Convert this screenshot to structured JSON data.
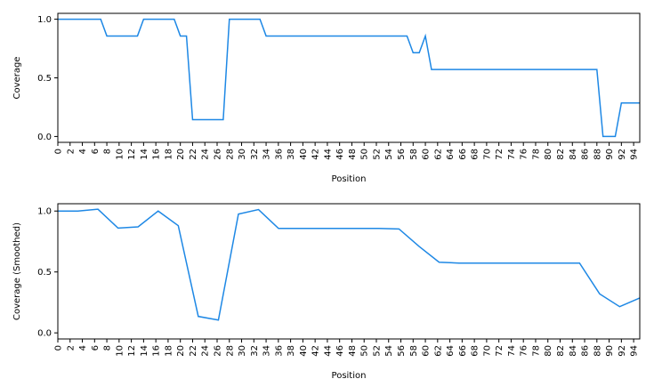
{
  "chart_data": [
    {
      "type": "line",
      "xlabel": "Position",
      "ylabel": "Coverage",
      "color": "#1e88e5",
      "x": [
        0,
        1,
        2,
        3,
        4,
        5,
        6,
        7,
        8,
        9,
        10,
        11,
        12,
        13,
        14,
        15,
        16,
        17,
        18,
        19,
        20,
        21,
        22,
        23,
        24,
        25,
        26,
        27,
        28,
        29,
        30,
        31,
        32,
        33,
        34,
        35,
        36,
        37,
        38,
        39,
        40,
        41,
        42,
        43,
        44,
        45,
        46,
        47,
        48,
        49,
        50,
        51,
        52,
        53,
        54,
        55,
        56,
        57,
        58,
        59,
        60,
        61,
        62,
        63,
        64,
        65,
        66,
        67,
        68,
        69,
        70,
        71,
        72,
        73,
        74,
        75,
        76,
        77,
        78,
        79,
        80,
        81,
        82,
        83,
        84,
        85,
        86,
        87,
        88,
        89,
        90,
        91,
        92,
        93,
        94,
        95
      ],
      "values": [
        1,
        1,
        1,
        1,
        1,
        1,
        1,
        1,
        0.857,
        0.857,
        0.857,
        0.857,
        0.857,
        0.857,
        1,
        1,
        1,
        1,
        1,
        1,
        0.857,
        0.857,
        0.143,
        0.143,
        0.143,
        0.143,
        0.143,
        0.143,
        1,
        1,
        1,
        1,
        1,
        1,
        0.857,
        0.857,
        0.857,
        0.857,
        0.857,
        0.857,
        0.857,
        0.857,
        0.857,
        0.857,
        0.857,
        0.857,
        0.857,
        0.857,
        0.857,
        0.857,
        0.857,
        0.857,
        0.857,
        0.857,
        0.857,
        0.857,
        0.857,
        0.857,
        0.714,
        0.714,
        0.857,
        0.571,
        0.571,
        0.571,
        0.571,
        0.571,
        0.571,
        0.571,
        0.571,
        0.571,
        0.571,
        0.571,
        0.571,
        0.571,
        0.571,
        0.571,
        0.571,
        0.571,
        0.571,
        0.571,
        0.571,
        0.571,
        0.571,
        0.571,
        0.571,
        0.571,
        0.571,
        0.571,
        0.571,
        0,
        0,
        0,
        0.286,
        0.286,
        0.286,
        0.286
      ],
      "xlim": [
        0,
        95
      ],
      "ylim": [
        -0.05,
        1.05
      ],
      "xticks": [
        0,
        2,
        4,
        6,
        8,
        10,
        12,
        14,
        16,
        18,
        20,
        22,
        24,
        26,
        28,
        30,
        32,
        34,
        36,
        38,
        40,
        42,
        44,
        46,
        48,
        50,
        52,
        54,
        56,
        58,
        60,
        62,
        64,
        66,
        68,
        70,
        72,
        74,
        76,
        78,
        80,
        82,
        84,
        86,
        88,
        90,
        92,
        94
      ],
      "yticks": [
        {
          "value": 0,
          "label": "0.0"
        },
        {
          "value": 0.5,
          "label": "0.5"
        },
        {
          "value": 1,
          "label": "1.0"
        }
      ]
    },
    {
      "type": "line",
      "xlabel": "Position",
      "ylabel": "Coverage (Smoothed)",
      "color": "#1e88e5",
      "x": [
        0,
        3.28,
        6.55,
        9.83,
        13.1,
        16.38,
        19.66,
        22.93,
        26.21,
        29.48,
        32.76,
        36.03,
        39.31,
        42.59,
        45.86,
        49.14,
        52.41,
        55.69,
        58.97,
        62.24,
        65.52,
        68.79,
        72.07,
        75.34,
        78.62,
        81.9,
        85.17,
        88.45,
        91.72,
        95
      ],
      "values": [
        1,
        1,
        1.015,
        0.86,
        0.87,
        1,
        0.88,
        0.135,
        0.105,
        0.975,
        1.012,
        0.857,
        0.857,
        0.857,
        0.857,
        0.857,
        0.857,
        0.853,
        0.71,
        0.58,
        0.573,
        0.573,
        0.573,
        0.573,
        0.573,
        0.573,
        0.573,
        0.32,
        0.215,
        0.286
      ],
      "xlim": [
        0,
        95
      ],
      "ylim": [
        -0.05,
        1.06
      ],
      "xticks": [
        0,
        2,
        4,
        6,
        8,
        10,
        12,
        14,
        16,
        18,
        20,
        22,
        24,
        26,
        28,
        30,
        32,
        34,
        36,
        38,
        40,
        42,
        44,
        46,
        48,
        50,
        52,
        54,
        56,
        58,
        60,
        62,
        64,
        66,
        68,
        70,
        72,
        74,
        76,
        78,
        80,
        82,
        84,
        86,
        88,
        90,
        92,
        94
      ],
      "yticks": [
        {
          "value": 0,
          "label": "0.0"
        },
        {
          "value": 0.5,
          "label": "0.5"
        },
        {
          "value": 1,
          "label": "1.0"
        }
      ]
    }
  ]
}
